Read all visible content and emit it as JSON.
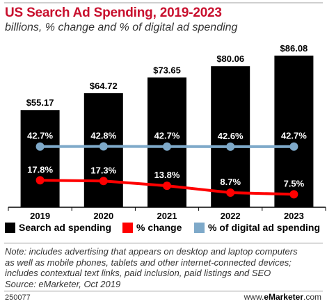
{
  "header": {
    "title": "US Search Ad Spending, 2019-2023",
    "subtitle": "billions, % change and % of digital ad spending"
  },
  "colors": {
    "title": "#c8102e",
    "bars": "#000000",
    "change_line": "#ff0000",
    "share_line": "#7ea9c9"
  },
  "chart_data": {
    "type": "bar",
    "title": "US Search Ad Spending, 2019-2023",
    "subtitle": "billions, % change and % of digital ad spending",
    "categories": [
      "2019",
      "2020",
      "2021",
      "2022",
      "2023"
    ],
    "ylim": [
      0,
      90
    ],
    "grid": false,
    "legend_position": "bottom",
    "series": [
      {
        "name": "Search ad spending",
        "type": "bar",
        "values": [
          55.17,
          64.72,
          73.65,
          80.06,
          86.08
        ],
        "labels": [
          "$55.17",
          "$64.72",
          "$73.65",
          "$80.06",
          "$86.08"
        ],
        "color": "#000000"
      },
      {
        "name": "% change",
        "type": "line",
        "values": [
          17.8,
          17.3,
          13.8,
          8.7,
          7.5
        ],
        "labels": [
          "17.8%",
          "17.3%",
          "13.8%",
          "8.7%",
          "7.5%"
        ],
        "color": "#ff0000"
      },
      {
        "name": "% of digital ad spending",
        "type": "line",
        "values": [
          42.7,
          42.8,
          42.7,
          42.6,
          42.7
        ],
        "labels": [
          "42.7%",
          "42.8%",
          "42.7%",
          "42.6%",
          "42.7%"
        ],
        "color": "#7ea9c9"
      }
    ]
  },
  "note": {
    "lines": [
      "Note: includes advertising that appears on desktop and laptop computers",
      "as well as mobile phones, tablets and other internet-connected devices;",
      "includes contextual text links, paid inclusion, paid listings and SEO",
      "Source: eMarketer, Oct 2019"
    ]
  },
  "footer": {
    "id": "250077",
    "brand_prefix": "www.",
    "brand_name": "eMarketer",
    "brand_suffix": ".com"
  }
}
